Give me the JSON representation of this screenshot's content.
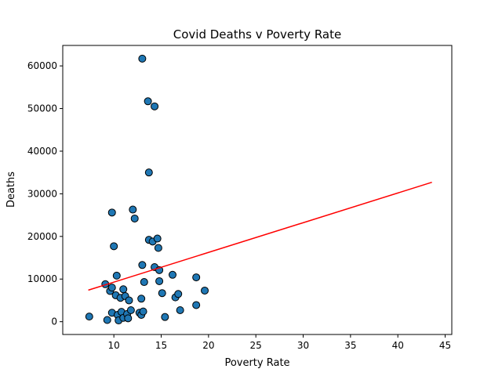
{
  "chart_data": {
    "type": "scatter",
    "title": "Covid Deaths v Poverty Rate",
    "xlabel": "Poverty Rate",
    "ylabel": "Deaths",
    "xlim": [
      4.6,
      45.7
    ],
    "ylim": [
      -3000,
      64800
    ],
    "xticks": [
      10,
      15,
      20,
      25,
      30,
      35,
      40,
      45
    ],
    "yticks": [
      0,
      10000,
      20000,
      30000,
      40000,
      50000,
      60000
    ],
    "grid": false,
    "legend": "none",
    "colors": {
      "points": "#1f77b4",
      "point_edge": "#000000",
      "trend": "#ff0000"
    },
    "points": [
      {
        "x": 13.0,
        "y": 61700
      },
      {
        "x": 13.6,
        "y": 51700
      },
      {
        "x": 14.3,
        "y": 50500
      },
      {
        "x": 13.7,
        "y": 35000
      },
      {
        "x": 9.8,
        "y": 25600
      },
      {
        "x": 12.0,
        "y": 26300
      },
      {
        "x": 12.2,
        "y": 24200
      },
      {
        "x": 13.7,
        "y": 19200
      },
      {
        "x": 14.1,
        "y": 18800
      },
      {
        "x": 14.6,
        "y": 19500
      },
      {
        "x": 14.7,
        "y": 17300
      },
      {
        "x": 10.0,
        "y": 17700
      },
      {
        "x": 13.0,
        "y": 13300
      },
      {
        "x": 14.3,
        "y": 12800
      },
      {
        "x": 14.8,
        "y": 12100
      },
      {
        "x": 10.3,
        "y": 10800
      },
      {
        "x": 16.2,
        "y": 11000
      },
      {
        "x": 18.7,
        "y": 10400
      },
      {
        "x": 9.1,
        "y": 8800
      },
      {
        "x": 13.2,
        "y": 9300
      },
      {
        "x": 14.8,
        "y": 9500
      },
      {
        "x": 9.6,
        "y": 7200
      },
      {
        "x": 9.8,
        "y": 8000
      },
      {
        "x": 11.0,
        "y": 7600
      },
      {
        "x": 10.2,
        "y": 6200
      },
      {
        "x": 10.7,
        "y": 5600
      },
      {
        "x": 11.2,
        "y": 6000
      },
      {
        "x": 11.6,
        "y": 5000
      },
      {
        "x": 12.9,
        "y": 5400
      },
      {
        "x": 15.1,
        "y": 6700
      },
      {
        "x": 16.5,
        "y": 5700
      },
      {
        "x": 16.8,
        "y": 6500
      },
      {
        "x": 19.6,
        "y": 7300
      },
      {
        "x": 18.7,
        "y": 3900
      },
      {
        "x": 7.4,
        "y": 1200
      },
      {
        "x": 9.3,
        "y": 400
      },
      {
        "x": 9.8,
        "y": 2100
      },
      {
        "x": 10.4,
        "y": 1600
      },
      {
        "x": 10.5,
        "y": 300
      },
      {
        "x": 10.8,
        "y": 2300
      },
      {
        "x": 11.0,
        "y": 900
      },
      {
        "x": 11.4,
        "y": 1800
      },
      {
        "x": 11.5,
        "y": 800
      },
      {
        "x": 11.8,
        "y": 2700
      },
      {
        "x": 12.7,
        "y": 2100
      },
      {
        "x": 12.9,
        "y": 1600
      },
      {
        "x": 13.1,
        "y": 2400
      },
      {
        "x": 15.4,
        "y": 1100
      },
      {
        "x": 17.0,
        "y": 2700
      }
    ],
    "trendline": [
      {
        "x": 7.3,
        "y": 7400
      },
      {
        "x": 43.6,
        "y": 32700
      }
    ]
  }
}
